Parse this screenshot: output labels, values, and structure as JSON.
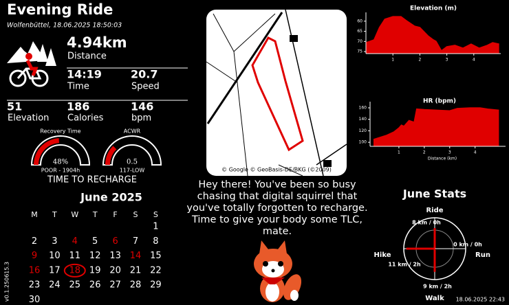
{
  "header": {
    "title": "Evening Ride",
    "subtitle": "Wolfenbüttel, 18.06.2025 18:50:03"
  },
  "stats": [
    {
      "value": "4.94km",
      "label": "Distance"
    },
    {
      "value": "14:19",
      "label": "Time"
    },
    {
      "value": "20.7",
      "label": "Speed"
    },
    {
      "value": "51",
      "label": "Elevation"
    },
    {
      "value": "186",
      "label": "Calories"
    },
    {
      "value": "146",
      "label": "bpm"
    }
  ],
  "gauges": {
    "title": "TIME TO RECHARGE",
    "color": "#e00000",
    "items": [
      {
        "name": "Recovery Time",
        "value": 48,
        "value_label": "48%",
        "range": [
          0,
          100
        ],
        "status": "POOR - 1904h"
      },
      {
        "name": "ACWR",
        "value": 0.5,
        "value_label": "0.5",
        "range": [
          0,
          2
        ],
        "status": "117-LOW"
      }
    ]
  },
  "calendar": {
    "title": "June 2025",
    "weekdays": [
      "M",
      "T",
      "W",
      "T",
      "F",
      "S",
      "S"
    ],
    "weeks": [
      [
        null,
        null,
        null,
        null,
        null,
        null,
        1
      ],
      [
        2,
        3,
        4,
        5,
        6,
        7,
        8
      ],
      [
        9,
        10,
        11,
        12,
        13,
        14,
        15
      ],
      [
        16,
        17,
        18,
        19,
        20,
        21,
        22
      ],
      [
        23,
        24,
        25,
        26,
        27,
        28,
        29
      ],
      [
        30,
        null,
        null,
        null,
        null,
        null,
        null
      ]
    ],
    "highlighted": [
      4,
      6,
      9,
      14,
      16,
      18
    ],
    "today": 18,
    "highlight_color": "#e00000"
  },
  "map": {
    "attribution": "© Google © GeoBasis-DE/BKG (©2009)"
  },
  "message": "Hey there! You've been so busy chasing that digital squirrel that you've totally forgotten to recharge. Time to give your body some TLC, mate.",
  "footer": {
    "version": "v0.1.250615.3",
    "timestamp": "18.06.2025 22:43"
  },
  "chart_data": [
    {
      "type": "area",
      "title": "Elevation (m)",
      "color": "#e00000",
      "x": [
        0,
        0.3,
        0.5,
        0.7,
        1.0,
        1.3,
        1.5,
        1.8,
        2.0,
        2.3,
        2.5,
        2.6,
        2.8,
        3.0,
        3.3,
        3.6,
        3.9,
        4.2,
        4.5,
        4.7,
        4.94
      ],
      "values": [
        70.6,
        69.2,
        63.1,
        59,
        57.7,
        57.7,
        59.7,
        62.4,
        63.1,
        67.2,
        69.2,
        69.9,
        74.6,
        72.6,
        71.9,
        73.3,
        71.3,
        73.3,
        71.9,
        70.6,
        71.3
      ],
      "xlim": [
        0,
        5
      ],
      "ylim": [
        76,
        57
      ],
      "xticks": [
        1,
        2,
        3,
        4
      ],
      "yticks": [
        60,
        65,
        70,
        75
      ]
    },
    {
      "type": "area",
      "title": "HR (bpm)",
      "x_label": "Distance (km)",
      "color": "#e00000",
      "x": [
        0,
        0.5,
        0.8,
        1.0,
        1.1,
        1.2,
        1.4,
        1.6,
        1.7,
        2.0,
        2.5,
        3.0,
        3.3,
        3.8,
        4.2,
        4.5,
        4.94
      ],
      "values": [
        105,
        112,
        118,
        125,
        130,
        128,
        138,
        135,
        158,
        157,
        156,
        155,
        159,
        160,
        160,
        158,
        156
      ],
      "xlim": [
        0,
        5.2
      ],
      "ylim": [
        93,
        166
      ],
      "xticks": [
        1,
        2,
        3,
        4
      ],
      "yticks": [
        100,
        120,
        140,
        160
      ]
    },
    {
      "type": "radar",
      "title": "June Stats",
      "color": "#e00000",
      "categories": [
        "Ride",
        "Run",
        "Walk",
        "Hike"
      ],
      "values": [
        8,
        0,
        9,
        11
      ],
      "value_labels": [
        "8 km / 0h",
        "0 km / 0h",
        "9 km / 2h",
        "11 km / 2h"
      ],
      "rlim": [
        0,
        12
      ]
    }
  ]
}
